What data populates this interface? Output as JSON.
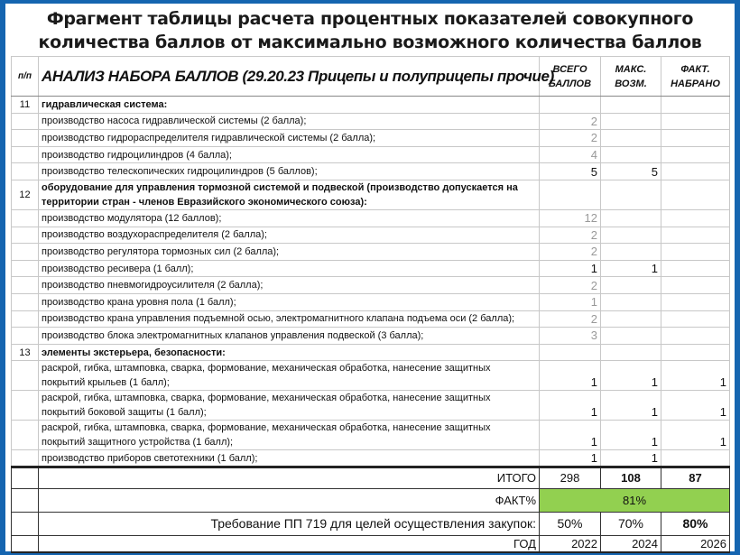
{
  "title": "Фрагмент таблицы расчета процентных показателей совокупного количества баллов от максимально возможного количества баллов",
  "table": {
    "headers": {
      "num": "п/п",
      "title": "АНАЛИЗ НАБОРА БАЛЛОВ (29.20.23 Прицепы и полуприцепы прочие)",
      "total": "ВСЕГО БАЛЛОВ",
      "max": "МАКС. ВОЗМ.",
      "fact": "ФАКТ. НАБРАНО"
    },
    "rows": [
      {
        "num": "11",
        "text": "гидравлическая система:",
        "bold": true,
        "total": "",
        "max": "",
        "fact": ""
      },
      {
        "num": "",
        "text": "производство насоса гидравлической системы (2 балла);",
        "total": "2",
        "gray": true,
        "max": "",
        "fact": ""
      },
      {
        "num": "",
        "text": "производство гидрораспределителя гидравлической системы (2 балла);",
        "total": "2",
        "gray": true,
        "max": "",
        "fact": ""
      },
      {
        "num": "",
        "text": "производство гидроцилиндров (4 балла);",
        "total": "4",
        "gray": true,
        "max": "",
        "fact": ""
      },
      {
        "num": "",
        "text": "производство телескопических гидроцилиндров (5 баллов);",
        "total": "5",
        "max": "5",
        "fact": ""
      },
      {
        "num": "12",
        "text": "оборудование для управления тормозной системой и подвеской (производство допускается на территории стран - членов Евразийского экономического союза):",
        "bold": true,
        "double": true,
        "total": "",
        "max": "",
        "fact": ""
      },
      {
        "num": "",
        "text": "производство модулятора (12 баллов);",
        "total": "12",
        "gray": true,
        "max": "",
        "fact": ""
      },
      {
        "num": "",
        "text": "производство воздухораспределителя (2 балла);",
        "total": "2",
        "gray": true,
        "max": "",
        "fact": ""
      },
      {
        "num": "",
        "text": "производство регулятора тормозных сил (2 балла);",
        "total": "2",
        "gray": true,
        "max": "",
        "fact": ""
      },
      {
        "num": "",
        "text": "производство ресивера (1 балл);",
        "total": "1",
        "max": "1",
        "fact": ""
      },
      {
        "num": "",
        "text": "производство пневмогидроусилителя (2 балла);",
        "total": "2",
        "gray": true,
        "max": "",
        "fact": ""
      },
      {
        "num": "",
        "text": "производство крана уровня пола (1 балл);",
        "total": "1",
        "gray": true,
        "max": "",
        "fact": ""
      },
      {
        "num": "",
        "text": "производство крана управления подъемной осью, электромагнитного клапана подъема оси (2 балла);",
        "total": "2",
        "gray": true,
        "max": "",
        "fact": ""
      },
      {
        "num": "",
        "text": "производство блока электромагнитных клапанов управления подвеской (3 балла);",
        "total": "3",
        "gray": true,
        "max": "",
        "fact": ""
      },
      {
        "num": "13",
        "text": "элементы экстерьера, безопасности:",
        "bold": true,
        "total": "",
        "max": "",
        "fact": ""
      },
      {
        "num": "",
        "text": "раскрой, гибка, штамповка, сварка, формование, механическая обработка, нанесение защитных покрытий крыльев (1 балл);",
        "double": true,
        "total": "1",
        "max": "1",
        "fact": "1"
      },
      {
        "num": "",
        "text": "раскрой, гибка, штамповка, сварка, формование, механическая обработка, нанесение защитных покрытий боковой защиты (1 балл);",
        "double": true,
        "total": "1",
        "max": "1",
        "fact": "1"
      },
      {
        "num": "",
        "text": "раскрой, гибка, штамповка, сварка, формование, механическая обработка, нанесение защитных покрытий защитного устройства (1 балл);",
        "double": true,
        "total": "1",
        "max": "1",
        "fact": "1"
      },
      {
        "num": "",
        "text": "производство приборов светотехники (1 балл);",
        "total": "1",
        "max": "1",
        "fact": ""
      }
    ],
    "itogo": {
      "label": "ИТОГО",
      "total": "298",
      "max": "108",
      "fact": "87"
    },
    "fact_pct": {
      "label": "ФАКТ%",
      "value": "81%",
      "color": "#92d050"
    },
    "requirement": {
      "label": "Требование ПП 719 для целей осуществления закупок:",
      "v1": "50%",
      "v2": "70%",
      "v3": "80%"
    },
    "year": {
      "label": "ГОД",
      "v1": "2022",
      "v2": "2024",
      "v3": "2026"
    }
  }
}
